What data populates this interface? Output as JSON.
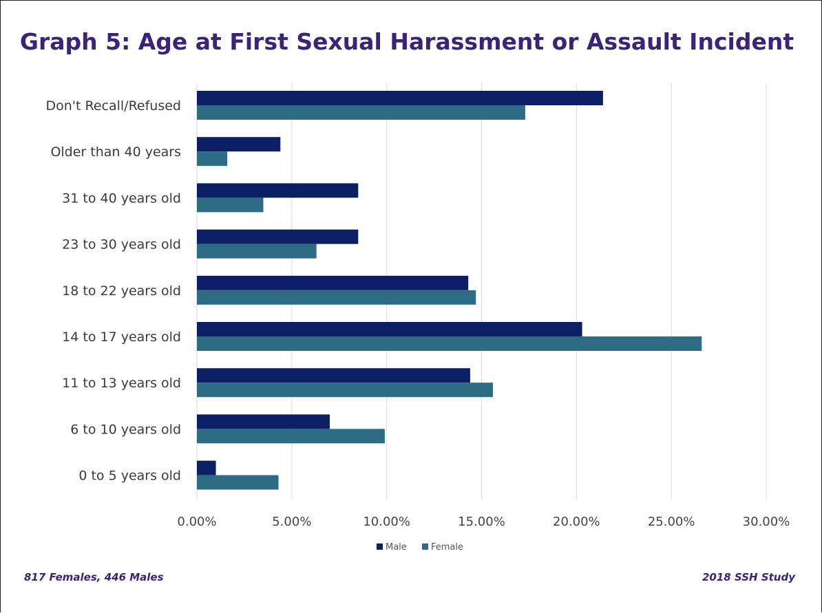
{
  "chart_data": {
    "type": "bar",
    "orientation": "horizontal",
    "title": "Graph 5: Age at First Sexual Harassment or Assault Incident",
    "categories": [
      "Don't Recall/Refused",
      "Older than 40 years",
      "31 to 40 years old",
      "23 to 30 years old",
      "18 to 22 years old",
      "14 to 17 years old",
      "11 to 13 years old",
      "6 to 10 years old",
      "0 to 5 years old"
    ],
    "series": [
      {
        "name": "Male",
        "color": "#0d1f64",
        "values": [
          21.4,
          4.4,
          8.5,
          8.5,
          14.3,
          20.3,
          14.4,
          7.0,
          1.0
        ]
      },
      {
        "name": "Female",
        "color": "#2e6b85",
        "values": [
          17.3,
          1.6,
          3.5,
          6.3,
          14.7,
          26.6,
          15.6,
          9.9,
          4.3
        ]
      }
    ],
    "xlim": [
      0,
      30
    ],
    "xticks": [
      0,
      5,
      10,
      15,
      20,
      25,
      30
    ],
    "xtick_labels": [
      "0.00%",
      "5.00%",
      "10.00%",
      "15.00%",
      "20.00%",
      "25.00%",
      "30.00%"
    ],
    "xlabel": "",
    "ylabel": "",
    "grid": true,
    "legend_position": "bottom"
  },
  "footnotes": {
    "left": "817 Females, 446 Males",
    "right": "2018 SSH Study"
  }
}
